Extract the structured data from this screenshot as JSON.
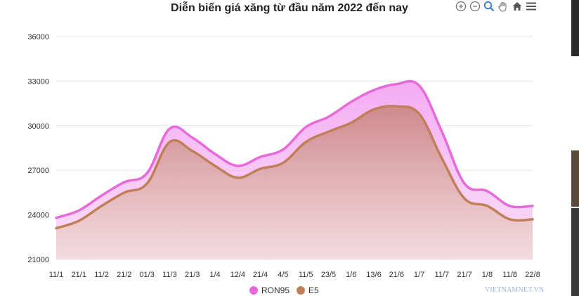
{
  "chart_data": {
    "type": "area",
    "title": "Diễn biến giá xăng từ đầu năm 2022 đến nay",
    "categories": [
      "11/1",
      "21/1",
      "11/2",
      "21/2",
      "01/3",
      "11/3",
      "21/3",
      "1/4",
      "12/4",
      "21/4",
      "4/5",
      "11/5",
      "23/5",
      "1/6",
      "13/6",
      "21/6",
      "1/7",
      "11/7",
      "21/7",
      "1/8",
      "11/8",
      "22/8"
    ],
    "series": [
      {
        "name": "RON95",
        "color": "#e66ad8",
        "values": [
          23800,
          24300,
          25300,
          26200,
          26800,
          29800,
          29200,
          28100,
          27300,
          27900,
          28400,
          29900,
          30600,
          31600,
          32400,
          32800,
          32700,
          29600,
          26100,
          25600,
          24600,
          24600
        ]
      },
      {
        "name": "E5",
        "color": "#c17f59",
        "values": [
          23100,
          23600,
          24600,
          25500,
          26100,
          28900,
          28300,
          27300,
          26500,
          27100,
          27500,
          28900,
          29600,
          30200,
          31100,
          31300,
          30800,
          27800,
          25100,
          24600,
          23700,
          23700
        ]
      }
    ],
    "yticks": [
      21000,
      24000,
      27000,
      30000,
      33000,
      36000
    ],
    "ylim": [
      21000,
      36000
    ],
    "grid": true,
    "legend": "bottom"
  },
  "toolbar": {
    "icons": [
      "zoom-in-icon",
      "zoom-out-icon",
      "magnify-icon",
      "pan-hand-icon",
      "home-icon",
      "menu-icon"
    ]
  },
  "watermark": "VIETNAMNET.VN",
  "colors": {
    "ron95_line": "#e66ad8",
    "e5_line": "#c17f59",
    "grid": "#e6e6e6",
    "axis_text": "#333333"
  }
}
